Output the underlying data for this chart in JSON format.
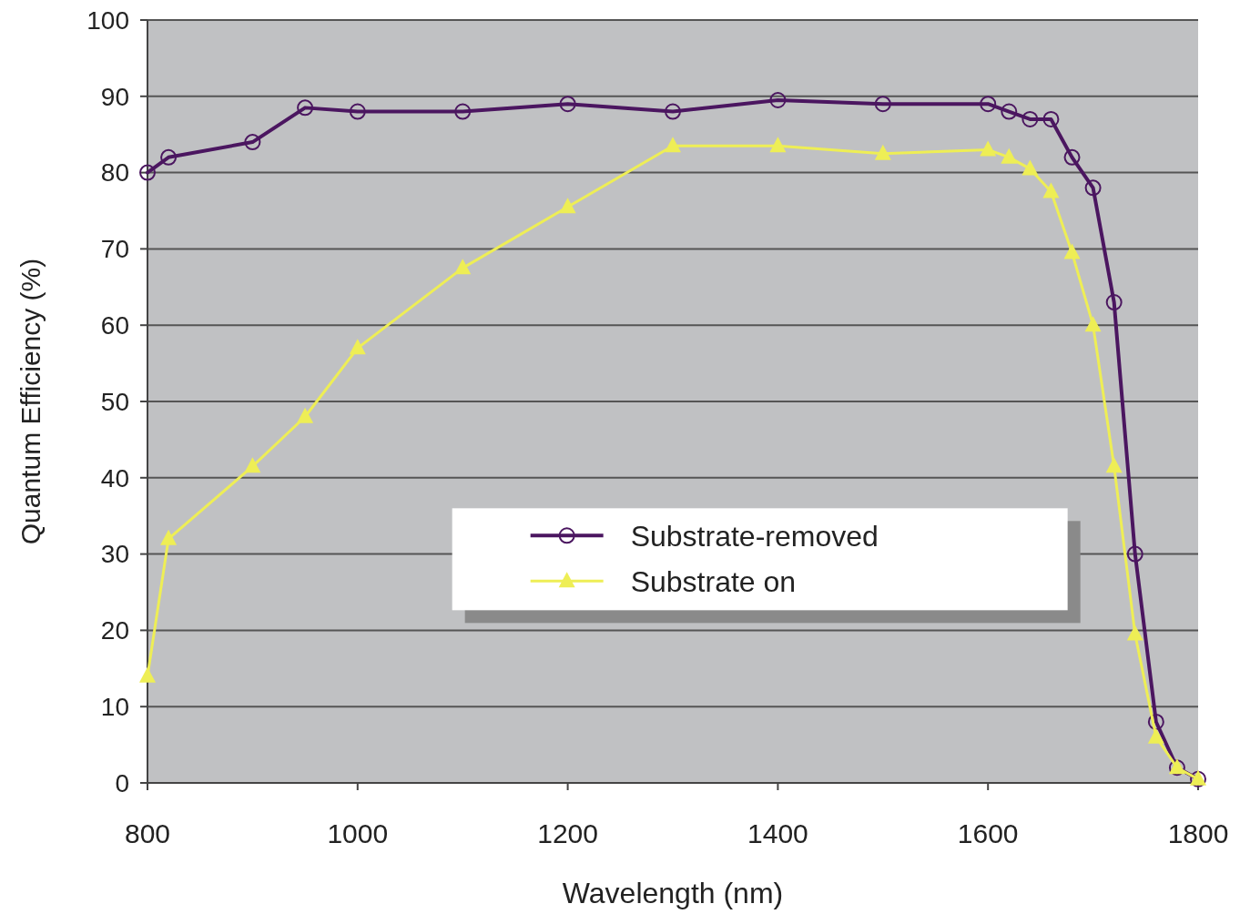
{
  "chart_data": {
    "type": "line",
    "xlabel": "Wavelength (nm)",
    "ylabel": "Quantum Efficiency (%)",
    "xlim": [
      800,
      1800
    ],
    "xticks": [
      800,
      1000,
      1200,
      1400,
      1600,
      1800
    ],
    "ylim": [
      0,
      100
    ],
    "yticks": [
      0,
      10,
      20,
      30,
      40,
      50,
      60,
      70,
      80,
      90,
      100
    ],
    "grid": "y",
    "legend": "bottom",
    "x": [
      800,
      820,
      900,
      950,
      1000,
      1100,
      1200,
      1300,
      1400,
      1500,
      1600,
      1620,
      1640,
      1660,
      1680,
      1700,
      1720,
      1740,
      1760,
      1780,
      1800
    ],
    "series": [
      {
        "name": "Substrate-removed",
        "color": "#4b1660",
        "marker": "circle",
        "values": [
          80,
          82,
          84,
          88.5,
          88,
          88,
          89,
          88,
          89.5,
          89,
          89,
          88,
          87,
          87,
          82,
          78,
          63,
          30,
          8,
          2,
          0.5
        ]
      },
      {
        "name": "Substrate on",
        "color": "#eeee55",
        "marker": "triangle",
        "values": [
          14,
          32,
          41.5,
          48,
          57,
          67.5,
          75.5,
          83.5,
          83.5,
          82.5,
          83,
          82,
          80.5,
          77.5,
          69.5,
          60,
          41.5,
          19.5,
          6,
          2,
          0.5
        ]
      }
    ]
  }
}
